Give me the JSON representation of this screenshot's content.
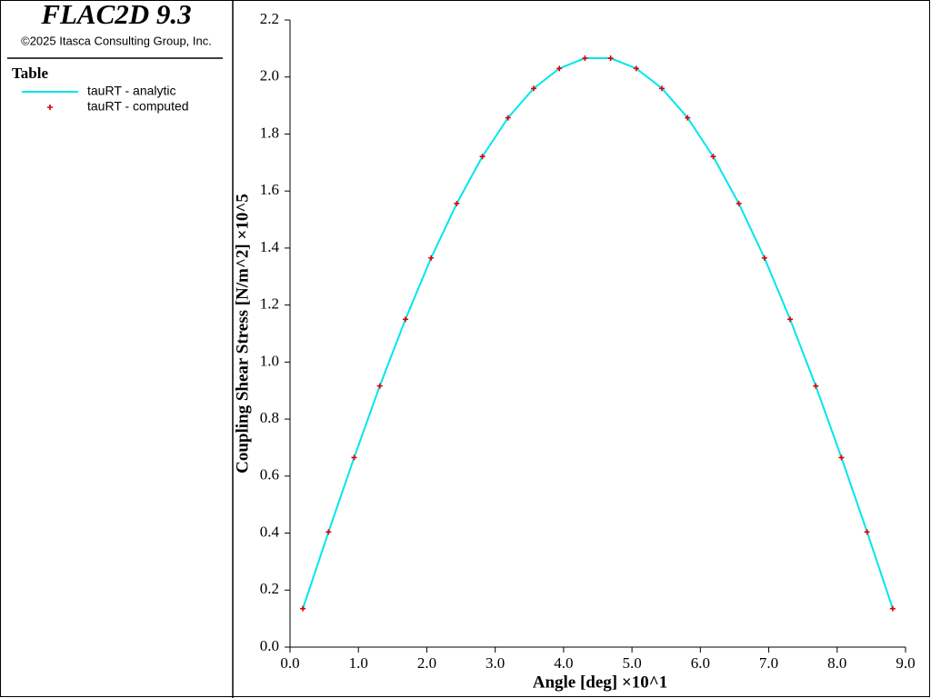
{
  "chart_data": {
    "type": "line",
    "title": "FLAC2D 9.3",
    "subtitle": "©2025 Itasca Consulting Group, Inc.",
    "legend_title": "Table",
    "xlabel": "Angle [deg] ×10^1",
    "ylabel": "Coupling Shear Stress [N/m^2] ×10^5",
    "x": [
      0.1875,
      0.5625,
      0.9375,
      1.3125,
      1.6875,
      2.0625,
      2.4375,
      2.8125,
      3.1875,
      3.5625,
      3.9375,
      4.3125,
      4.6875,
      5.0625,
      5.4375,
      5.8125,
      6.1875,
      6.5625,
      6.9375,
      7.3125,
      7.6875,
      8.0625,
      8.4375,
      8.8125
    ],
    "series": [
      {
        "name": "tauRT - analytic",
        "color": "#00e5ee",
        "style": "line",
        "values": [
          0.135,
          0.404,
          0.665,
          0.916,
          1.15,
          1.365,
          1.556,
          1.721,
          1.857,
          1.96,
          2.03,
          2.066,
          2.066,
          2.03,
          1.96,
          1.857,
          1.721,
          1.556,
          1.365,
          1.15,
          0.916,
          0.665,
          0.404,
          0.135
        ]
      },
      {
        "name": "tauRT - computed",
        "color": "#e00000",
        "style": "marker",
        "values": [
          0.135,
          0.404,
          0.665,
          0.916,
          1.15,
          1.365,
          1.556,
          1.721,
          1.857,
          1.96,
          2.03,
          2.066,
          2.066,
          2.03,
          1.96,
          1.857,
          1.721,
          1.556,
          1.365,
          1.15,
          0.916,
          0.665,
          0.404,
          0.135
        ]
      }
    ],
    "xlim": [
      0,
      9
    ],
    "ylim": [
      0,
      2.2
    ],
    "xticks": [
      {
        "value": 0,
        "label": "0.0"
      },
      {
        "value": 1,
        "label": "1.0"
      },
      {
        "value": 2,
        "label": "2.0"
      },
      {
        "value": 3,
        "label": "3.0"
      },
      {
        "value": 4,
        "label": "4.0"
      },
      {
        "value": 5,
        "label": "5.0"
      },
      {
        "value": 6,
        "label": "6.0"
      },
      {
        "value": 7,
        "label": "7.0"
      },
      {
        "value": 8,
        "label": "8.0"
      },
      {
        "value": 9,
        "label": "9.0"
      }
    ],
    "yticks": [
      {
        "value": 0,
        "label": "0.0"
      },
      0.2,
      0.4,
      0.6,
      0.8,
      {
        "value": 1,
        "label": "1.0"
      },
      1.2,
      1.4,
      1.6,
      1.8,
      {
        "value": 2,
        "label": "2.0"
      },
      2.2
    ]
  }
}
